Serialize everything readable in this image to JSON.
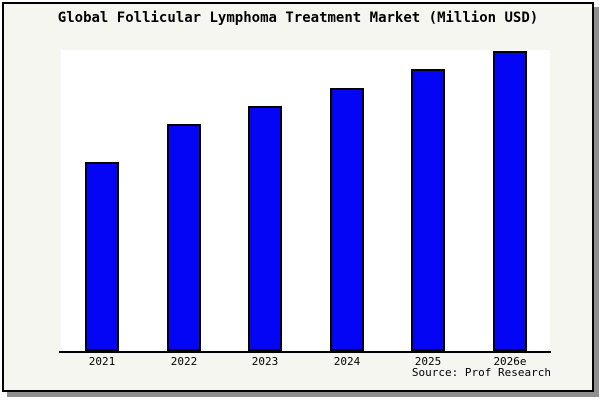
{
  "chart_data": {
    "type": "bar",
    "title": "Global Follicular Lymphoma Treatment Market (Million USD)",
    "categories": [
      "2021",
      "2022",
      "2023",
      "2024",
      "2025",
      "2026e"
    ],
    "values_percent_of_max": [
      62.9,
      75.5,
      81.8,
      87.8,
      93.9,
      100
    ],
    "ylim": [
      0,
      100
    ],
    "xlabel": "",
    "ylabel": "",
    "grid": false,
    "legend": "none",
    "y_axis_ticks_shown": false,
    "source": "Source: Prof Research",
    "colors": {
      "bar_fill": "#0505f5",
      "bar_border": "#000000",
      "plot_background": "#ffffff",
      "frame_background": "#f6f6f0",
      "frame_border": "#000000",
      "frame_shadow": "#8f8f8f",
      "text": "#000000"
    }
  }
}
